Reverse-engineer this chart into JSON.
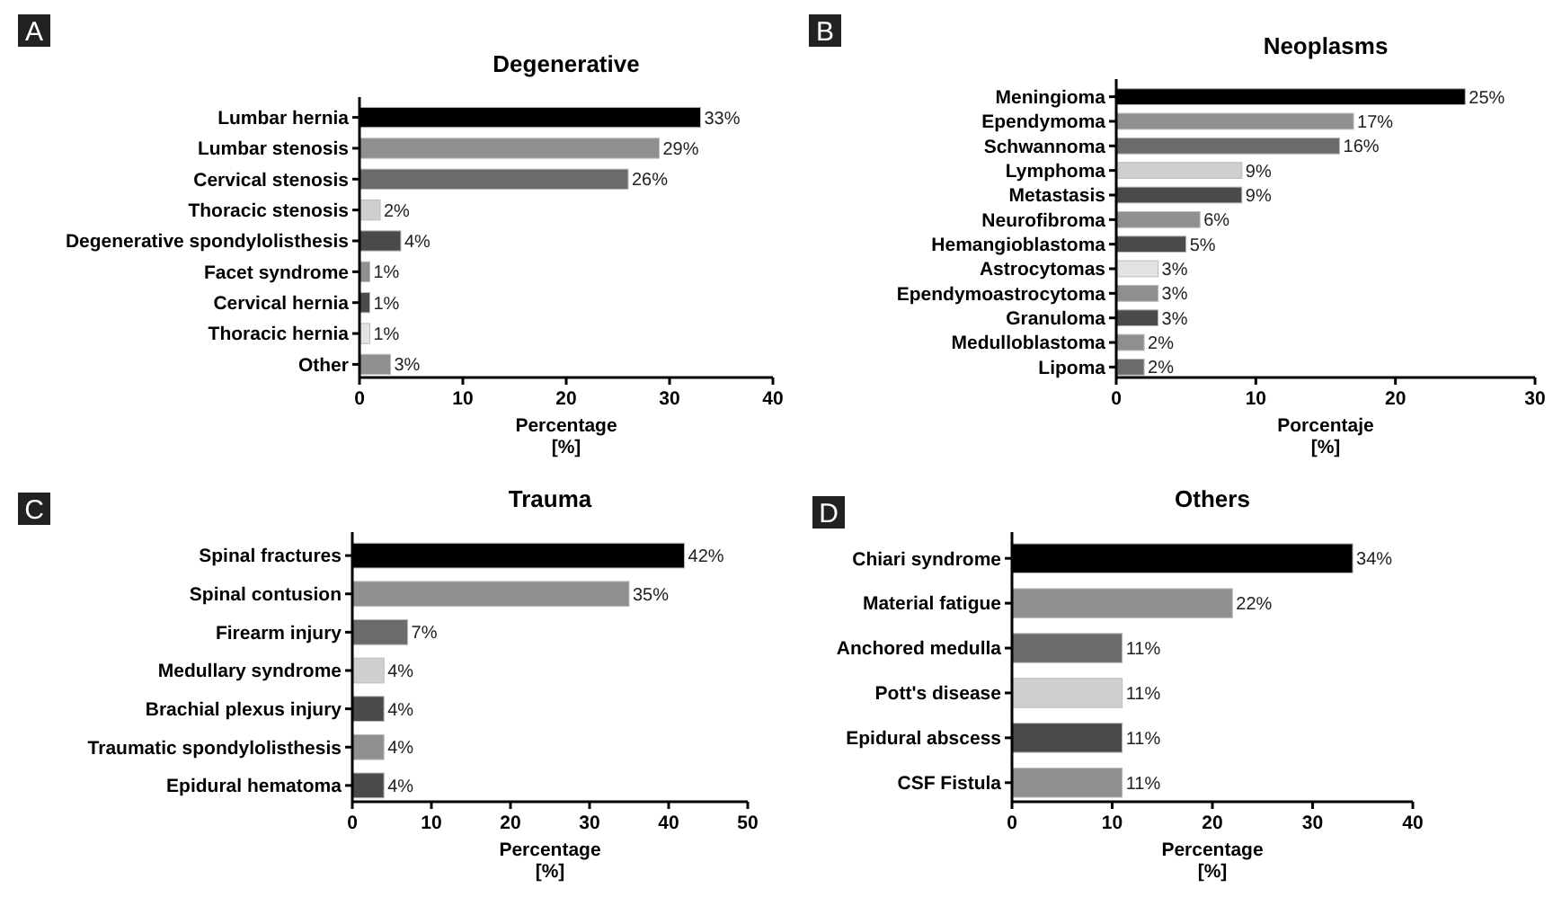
{
  "chart_data": [
    {
      "type": "bar",
      "orientation": "horizontal",
      "title": "Degenerative",
      "xlabel": "Percentage\n[%]",
      "annotations": [
        "A"
      ],
      "categories": [
        "Lumbar hernia",
        "Lumbar stenosis",
        "Cervical stenosis",
        "Thoracic stenosis",
        "Degenerative spondylolisthesis",
        "Facet syndrome",
        "Cervical hernia",
        "Thoracic hernia",
        "Other"
      ],
      "values": [
        33,
        29,
        26,
        2,
        4,
        1,
        1,
        1,
        3
      ],
      "value_labels": [
        "33%",
        "29%",
        "26%",
        "2%",
        "4%",
        "1%",
        "1%",
        "1%",
        "3%"
      ],
      "colors": [
        "#000000",
        "#8f8f8f",
        "#6b6b6b",
        "#cfcfcf",
        "#4a4a4a",
        "#8f8f8f",
        "#4a4a4a",
        "#e3e3e3",
        "#8f8f8f"
      ],
      "xlim": [
        0,
        40
      ],
      "xticks": [
        0,
        10,
        20,
        30,
        40
      ]
    },
    {
      "type": "bar",
      "orientation": "horizontal",
      "title": "Neoplasms",
      "xlabel": "Porcentaje\n[%]",
      "annotations": [
        "B"
      ],
      "categories": [
        "Meningioma",
        "Ependymoma",
        "Schwannoma",
        "Lymphoma",
        "Metastasis",
        "Neurofibroma",
        "Hemangioblastoma",
        "Astrocytomas",
        "Ependymoastrocytoma",
        "Granuloma",
        "Medulloblastoma",
        "Lipoma"
      ],
      "values": [
        25,
        17,
        16,
        9,
        9,
        6,
        5,
        3,
        3,
        3,
        2,
        2
      ],
      "value_labels": [
        "25%",
        "17%",
        "16%",
        "9%",
        "9%",
        "6%",
        "5%",
        "3%",
        "3%",
        "3%",
        "2%",
        "2%"
      ],
      "colors": [
        "#000000",
        "#8f8f8f",
        "#6b6b6b",
        "#cfcfcf",
        "#4a4a4a",
        "#8f8f8f",
        "#4a4a4a",
        "#e3e3e3",
        "#8f8f8f",
        "#4a4a4a",
        "#8f8f8f",
        "#6b6b6b"
      ],
      "xlim": [
        0,
        30
      ],
      "xticks": [
        0,
        10,
        20,
        30
      ]
    },
    {
      "type": "bar",
      "orientation": "horizontal",
      "title": "Trauma",
      "xlabel": "Percentage\n[%]",
      "annotations": [
        "C"
      ],
      "categories": [
        "Spinal fractures",
        "Spinal contusion",
        "Firearm injury",
        "Medullary syndrome",
        "Brachial plexus injury",
        "Traumatic spondylolisthesis",
        "Epidural hematoma"
      ],
      "values": [
        42,
        35,
        7,
        4,
        4,
        4,
        4
      ],
      "value_labels": [
        "42%",
        "35%",
        "7%",
        "4%",
        "4%",
        "4%",
        "4%"
      ],
      "colors": [
        "#000000",
        "#8f8f8f",
        "#6b6b6b",
        "#cfcfcf",
        "#4a4a4a",
        "#8f8f8f",
        "#4a4a4a"
      ],
      "xlim": [
        0,
        50
      ],
      "xticks": [
        0,
        10,
        20,
        30,
        40,
        50
      ]
    },
    {
      "type": "bar",
      "orientation": "horizontal",
      "title": "Others",
      "xlabel": "Percentage\n[%]",
      "annotations": [
        "D"
      ],
      "categories": [
        "Chiari syndrome",
        "Material fatigue",
        "Anchored medulla",
        "Pott's disease",
        "Epidural abscess",
        "CSF Fistula"
      ],
      "values": [
        34,
        22,
        11,
        11,
        11,
        11
      ],
      "value_labels": [
        "34%",
        "22%",
        "11%",
        "11%",
        "11%",
        "11%"
      ],
      "colors": [
        "#000000",
        "#8f8f8f",
        "#6b6b6b",
        "#cfcfcf",
        "#4a4a4a",
        "#8f8f8f"
      ],
      "xlim": [
        0,
        40
      ],
      "xticks": [
        0,
        10,
        20,
        30,
        40
      ]
    }
  ]
}
